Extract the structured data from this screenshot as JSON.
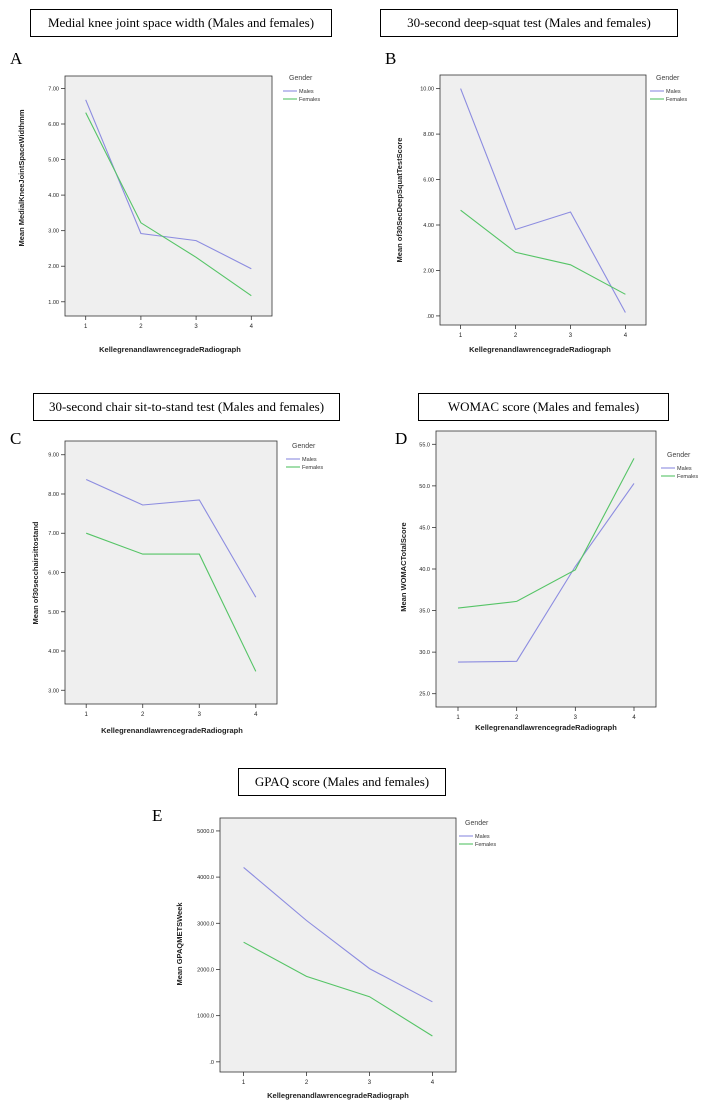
{
  "colors": {
    "males": "#8c8ce0",
    "females": "#55c466",
    "plot_bg": "#efefef"
  },
  "chart_data": [
    {
      "panel": "A",
      "type": "line",
      "title": "Medial knee joint space width (Males and females)",
      "xlabel": "KellegrenandlawrencegradeRadiograph",
      "ylabel": "Mean MedialKneeJointSpaceWidthmm",
      "categories": [
        "1",
        "2",
        "3",
        "4"
      ],
      "yticks": [
        "1.00",
        "2.00",
        "3.00",
        "4.00",
        "5.00",
        "6.00",
        "7.00"
      ],
      "ytick_values": [
        1,
        2,
        3,
        4,
        5,
        6,
        7
      ],
      "ylim": [
        0.6,
        7.35
      ],
      "legend_title": "Gender",
      "series": [
        {
          "name": "Males",
          "values": [
            6.68,
            2.92,
            2.72,
            1.93
          ]
        },
        {
          "name": "Females",
          "values": [
            6.32,
            3.22,
            2.25,
            1.17
          ]
        }
      ]
    },
    {
      "panel": "B",
      "type": "line",
      "title": "30-second deep-squat test (Males and females)",
      "xlabel": "KellegrenandlawrencegradeRadiograph",
      "ylabel": "Mean of30SecDeepSquatTestScore",
      "categories": [
        "1",
        "2",
        "3",
        "4"
      ],
      "yticks": [
        ".00",
        "2.00",
        "4.00",
        "6.00",
        "8.00",
        "10.00"
      ],
      "ytick_values": [
        0,
        2,
        4,
        6,
        8,
        10
      ],
      "ylim": [
        -0.4,
        10.6
      ],
      "legend_title": "Gender",
      "series": [
        {
          "name": "Males",
          "values": [
            10.0,
            3.8,
            4.57,
            0.15
          ]
        },
        {
          "name": "Females",
          "values": [
            4.65,
            2.8,
            2.25,
            0.95
          ]
        }
      ]
    },
    {
      "panel": "C",
      "type": "line",
      "title": "30-second chair sit-to-stand test (Males and females)",
      "xlabel": "KellegrenandlawrencegradeRadiograph",
      "ylabel": "Mean of30secchairsittostand",
      "categories": [
        "1",
        "2",
        "3",
        "4"
      ],
      "yticks": [
        "3.00",
        "4.00",
        "5.00",
        "6.00",
        "7.00",
        "8.00",
        "9.00"
      ],
      "ytick_values": [
        3,
        4,
        5,
        6,
        7,
        8,
        9
      ],
      "ylim": [
        2.65,
        9.35
      ],
      "legend_title": "Gender",
      "series": [
        {
          "name": "Males",
          "values": [
            8.37,
            7.72,
            7.85,
            5.37
          ]
        },
        {
          "name": "Females",
          "values": [
            7.0,
            6.47,
            6.47,
            3.48
          ]
        }
      ]
    },
    {
      "panel": "D",
      "type": "line",
      "title": "WOMAC score (Males and females)",
      "xlabel": "KellegrenandlawrencegradeRadiograph",
      "ylabel": "Mean WOMACTotalScore",
      "categories": [
        "1",
        "2",
        "3",
        "4"
      ],
      "yticks": [
        "25.0",
        "30.0",
        "35.0",
        "40.0",
        "45.0",
        "50.0",
        "55.0"
      ],
      "ytick_values": [
        25,
        30,
        35,
        40,
        45,
        50,
        55
      ],
      "ylim": [
        23.4,
        56.6
      ],
      "legend_title": "Gender",
      "series": [
        {
          "name": "Males",
          "values": [
            28.8,
            28.9,
            40.3,
            50.3
          ]
        },
        {
          "name": "Females",
          "values": [
            35.3,
            36.1,
            39.9,
            53.3
          ]
        }
      ]
    },
    {
      "panel": "E",
      "type": "line",
      "title": "GPAQ score (Males and females)",
      "xlabel": "KellegrenandlawrencegradeRadiograph",
      "ylabel": "Mean GPAQMETSWeek",
      "categories": [
        "1",
        "2",
        "3",
        "4"
      ],
      "yticks": [
        ".0",
        "1000.0",
        "2000.0",
        "3000.0",
        "4000.0",
        "5000.0"
      ],
      "ytick_values": [
        0,
        1000,
        2000,
        3000,
        4000,
        5000
      ],
      "ylim": [
        -220,
        5280
      ],
      "legend_title": "Gender",
      "series": [
        {
          "name": "Males",
          "values": [
            4210,
            3060,
            2020,
            1300
          ]
        },
        {
          "name": "Females",
          "values": [
            2590,
            1850,
            1410,
            560
          ]
        }
      ]
    }
  ]
}
